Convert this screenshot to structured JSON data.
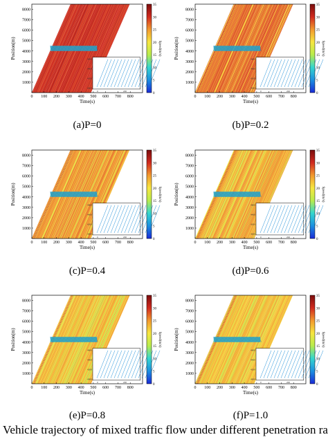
{
  "chart_data": [
    {
      "type": "scatter",
      "panel": "a",
      "caption": "(a)P=0",
      "title": "",
      "xlabel": "Time(s)",
      "ylabel": "Position(m)",
      "colorbar_label": "Speed(m/s)",
      "xlim": [
        0,
        900
      ],
      "ylim": [
        0,
        8500
      ],
      "x_ticks": [
        0,
        100,
        200,
        300,
        400,
        500,
        600,
        700,
        800
      ],
      "y_ticks": [
        1000,
        2000,
        3000,
        4000,
        5000,
        6000,
        7000,
        8000
      ],
      "colorbar_ticks": [
        0,
        5,
        10,
        15,
        20,
        25,
        30,
        35
      ],
      "colorbar_range": [
        0,
        35
      ],
      "p_value": 0,
      "trajectories": {
        "dominant_speed": 30,
        "t_start_range": [
          0,
          480
        ],
        "slope_m_per_s": 27
      },
      "congestion_zone": {
        "position_range": [
          4000,
          4500
        ],
        "time_range": [
          150,
          530
        ],
        "speed": 8
      },
      "inset": {
        "y_ticks": [
          4000,
          4200,
          4400,
          4600
        ],
        "x_ticks": [
          0,
          200
        ]
      },
      "grid": false,
      "legend": "none"
    },
    {
      "type": "scatter",
      "panel": "b",
      "caption": "(b)P=0.2",
      "title": "",
      "xlabel": "Time(s)",
      "ylabel": "Position(m)",
      "colorbar_label": "Speed(m/s)",
      "xlim": [
        0,
        900
      ],
      "ylim": [
        0,
        8500
      ],
      "x_ticks": [
        0,
        100,
        200,
        300,
        400,
        500,
        600,
        700,
        800
      ],
      "y_ticks": [
        1000,
        2000,
        3000,
        4000,
        5000,
        6000,
        7000,
        8000
      ],
      "colorbar_ticks": [
        0,
        5,
        10,
        15,
        20,
        25,
        30,
        35
      ],
      "colorbar_range": [
        0,
        35
      ],
      "p_value": 0.2,
      "trajectories": {
        "dominant_speed": 27,
        "t_start_range": [
          0,
          480
        ],
        "slope_m_per_s": 27
      },
      "congestion_zone": {
        "position_range": [
          4000,
          4500
        ],
        "time_range": [
          150,
          530
        ],
        "speed": 8
      },
      "inset": {
        "y_ticks": [
          4000,
          4200,
          4400,
          4600
        ],
        "x_ticks": [
          0,
          200
        ]
      },
      "grid": false,
      "legend": "none"
    },
    {
      "type": "scatter",
      "panel": "c",
      "caption": "(c)P=0.4",
      "title": "",
      "xlabel": "Time(s)",
      "ylabel": "Position(m)",
      "colorbar_label": "Speed(m/s)",
      "xlim": [
        0,
        900
      ],
      "ylim": [
        0,
        8500
      ],
      "x_ticks": [
        0,
        100,
        200,
        300,
        400,
        500,
        600,
        700,
        800
      ],
      "y_ticks": [
        1000,
        2000,
        3000,
        4000,
        5000,
        6000,
        7000,
        8000
      ],
      "colorbar_ticks": [
        0,
        5,
        10,
        15,
        20,
        25,
        30,
        35
      ],
      "colorbar_range": [
        0,
        35
      ],
      "p_value": 0.4,
      "trajectories": {
        "dominant_speed": 25,
        "t_start_range": [
          0,
          480
        ],
        "slope_m_per_s": 27
      },
      "congestion_zone": {
        "position_range": [
          4000,
          4500
        ],
        "time_range": [
          150,
          530
        ],
        "speed": 8
      },
      "inset": {
        "y_ticks": [
          4000,
          4200,
          4400,
          4600
        ],
        "x_ticks": [
          0,
          200
        ]
      },
      "grid": false,
      "legend": "none"
    },
    {
      "type": "scatter",
      "panel": "d",
      "caption": "(d)P=0.6",
      "title": "",
      "xlabel": "Time(s)",
      "ylabel": "Position(m)",
      "colorbar_label": "Speed(m/s)",
      "xlim": [
        0,
        900
      ],
      "ylim": [
        0,
        8500
      ],
      "x_ticks": [
        0,
        100,
        200,
        300,
        400,
        500,
        600,
        700,
        800
      ],
      "y_ticks": [
        1000,
        2000,
        3000,
        4000,
        5000,
        6000,
        7000,
        8000
      ],
      "colorbar_ticks": [
        0,
        5,
        10,
        15,
        20,
        25,
        30,
        35
      ],
      "colorbar_range": [
        0,
        35
      ],
      "p_value": 0.6,
      "trajectories": {
        "dominant_speed": 24,
        "t_start_range": [
          0,
          480
        ],
        "slope_m_per_s": 27
      },
      "congestion_zone": {
        "position_range": [
          4000,
          4500
        ],
        "time_range": [
          150,
          530
        ],
        "speed": 8
      },
      "inset": {
        "y_ticks": [
          4000,
          4200,
          4400,
          4600
        ],
        "x_ticks": [
          0,
          200
        ]
      },
      "grid": false,
      "legend": "none"
    },
    {
      "type": "scatter",
      "panel": "e",
      "caption": "(e)P=0.8",
      "title": "",
      "xlabel": "Time(s)",
      "ylabel": "Position(m)",
      "colorbar_label": "Speed(m/s)",
      "xlim": [
        0,
        900
      ],
      "ylim": [
        0,
        8500
      ],
      "x_ticks": [
        0,
        100,
        200,
        300,
        400,
        500,
        600,
        700,
        800
      ],
      "y_ticks": [
        1000,
        2000,
        3000,
        4000,
        5000,
        6000,
        7000,
        8000
      ],
      "colorbar_ticks": [
        0,
        5,
        10,
        15,
        20,
        25,
        30,
        35
      ],
      "colorbar_range": [
        0,
        35
      ],
      "p_value": 0.8,
      "trajectories": {
        "dominant_speed": 23,
        "t_start_range": [
          0,
          480
        ],
        "slope_m_per_s": 27
      },
      "congestion_zone": {
        "position_range": [
          4000,
          4500
        ],
        "time_range": [
          150,
          530
        ],
        "speed": 8
      },
      "inset": {
        "y_ticks": [
          4000,
          4200,
          4400,
          4600
        ],
        "x_ticks": [
          0,
          200
        ]
      },
      "grid": false,
      "legend": "none"
    },
    {
      "type": "scatter",
      "panel": "f",
      "caption": "(f)P=1.0",
      "title": "",
      "xlabel": "Time(s)",
      "ylabel": "Position(m)",
      "colorbar_label": "Speed(m/s)",
      "xlim": [
        0,
        900
      ],
      "ylim": [
        0,
        8500
      ],
      "x_ticks": [
        0,
        100,
        200,
        300,
        400,
        500,
        600,
        700,
        800
      ],
      "y_ticks": [
        1000,
        2000,
        3000,
        4000,
        5000,
        6000,
        7000,
        8000
      ],
      "colorbar_ticks": [
        0,
        5,
        10,
        15,
        20,
        25,
        30,
        35
      ],
      "colorbar_range": [
        0,
        35
      ],
      "p_value": 1.0,
      "trajectories": {
        "dominant_speed": 23,
        "t_start_range": [
          0,
          480
        ],
        "slope_m_per_s": 27
      },
      "congestion_zone": {
        "position_range": [
          4000,
          4500
        ],
        "time_range": [
          150,
          530
        ],
        "speed": 8
      },
      "inset": {
        "y_ticks": [
          4000,
          4200,
          4400,
          4600
        ],
        "x_ticks": [
          0,
          200
        ]
      },
      "grid": false,
      "legend": "none"
    }
  ],
  "figure": {
    "bottom_caption": "Vehicle trajectory of mixed traffic flow under different penetration rates",
    "colors": {
      "trajectory_fast": "#ee6a2a",
      "trajectory_mid": "#f6e640",
      "congestion": "#1f8fd8",
      "onramp_trace": "#c2392f",
      "colorbar_stops": [
        "#1a2bd6",
        "#1c8fe0",
        "#33d6cf",
        "#b8ec4c",
        "#f6e640",
        "#f2992e",
        "#d12a1f",
        "#7a0d0d"
      ]
    }
  }
}
